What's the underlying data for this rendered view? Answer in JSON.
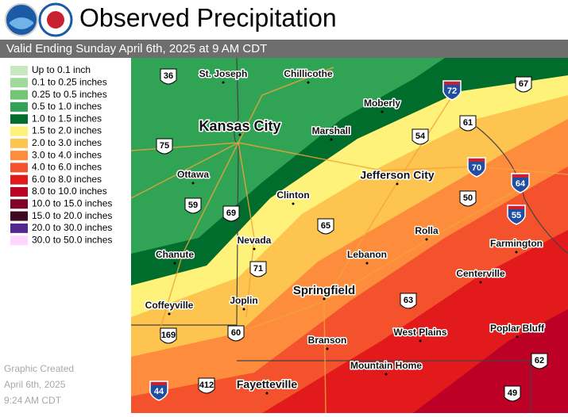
{
  "header": {
    "title": "Observed Precipitation",
    "subtitle": "Valid Ending Sunday April 6th, 2025 at 9 AM CDT"
  },
  "legend": [
    {
      "label": "Up to 0.1 inch",
      "color": "#c7e9c0"
    },
    {
      "label": "0.1 to 0.25 inches",
      "color": "#a1d99b"
    },
    {
      "label": "0.25 to 0.5 inches",
      "color": "#74c476"
    },
    {
      "label": "0.5 to 1.0 inches",
      "color": "#31a354"
    },
    {
      "label": "1.0 to 1.5 inches",
      "color": "#006d2c"
    },
    {
      "label": "1.5 to 2.0 inches",
      "color": "#fff27a"
    },
    {
      "label": "2.0 to 3.0 inches",
      "color": "#fdc44f"
    },
    {
      "label": "3.0 to 4.0 inches",
      "color": "#fd8d3c"
    },
    {
      "label": "4.0 to 6.0 inches",
      "color": "#f4512d"
    },
    {
      "label": "6.0 to 8.0 inches",
      "color": "#e31a1c"
    },
    {
      "label": "8.0 to 10.0 inches",
      "color": "#bd0026"
    },
    {
      "label": "10.0 to 15.0 inches",
      "color": "#800026"
    },
    {
      "label": "15.0 to 20.0 inches",
      "color": "#3f0a1f"
    },
    {
      "label": "20.0 to 30.0 inches",
      "color": "#54278f"
    },
    {
      "label": "30.0 to 50.0 inches",
      "color": "#ffd6ff"
    }
  ],
  "cities": [
    "St. Joseph",
    "Chillicothe",
    "Moberly",
    "Kansas City",
    "Marshall",
    "Jefferson City",
    "Ottawa",
    "Clinton",
    "Nevada",
    "Lebanon",
    "Rolla",
    "Farmington",
    "Chanute",
    "Centerville",
    "Springfield",
    "Coffeyville",
    "Joplin",
    "West Plains",
    "Poplar Bluff",
    "Branson",
    "Mountain Home",
    "Fayetteville"
  ],
  "us_routes": [
    "36",
    "67",
    "61",
    "54",
    "75",
    "50",
    "59",
    "69",
    "65",
    "71",
    "63",
    "169",
    "60",
    "412",
    "62",
    "49"
  ],
  "interstates": [
    "72",
    "70",
    "64",
    "55",
    "44"
  ],
  "footer": [
    "Graphic Created",
    "April 6th, 2025",
    "9:24 AM CDT"
  ]
}
